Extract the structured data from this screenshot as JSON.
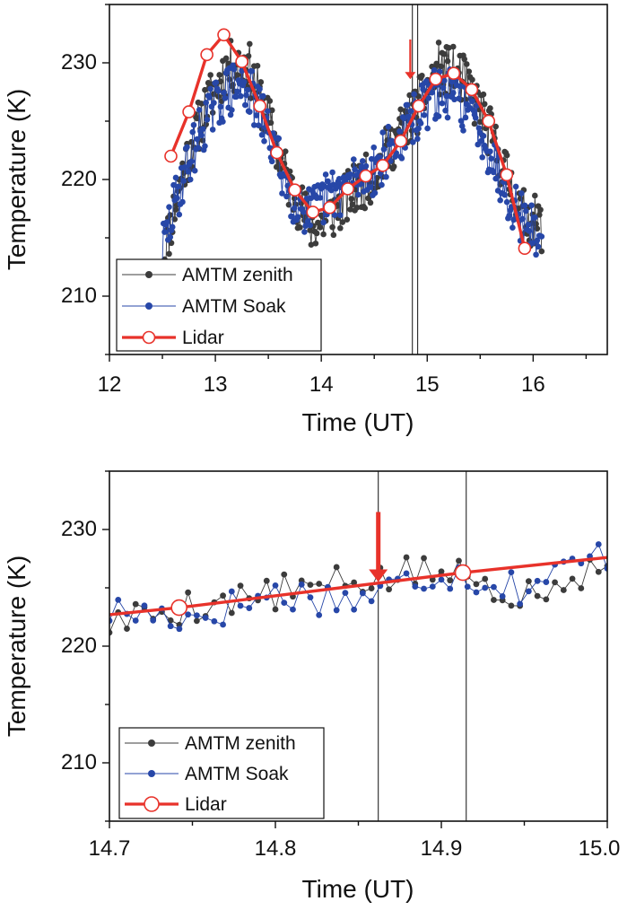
{
  "colors": {
    "zenith": "#3c3c3c",
    "soak": "#2747a8",
    "lidar": "#e8322a",
    "axis": "#111111",
    "marker_line": "#111111"
  },
  "chart_data": [
    {
      "id": "top",
      "type": "line",
      "xlabel": "Time (UT)",
      "ylabel": "Temperature (K)",
      "xlim": [
        12,
        16.7
      ],
      "ylim": [
        205,
        235
      ],
      "xticks": [
        12,
        13,
        14,
        15,
        16
      ],
      "yticks": [
        210,
        220,
        230
      ],
      "xtick_labels": [
        "12",
        "13",
        "14",
        "15",
        "16"
      ],
      "ytick_labels": [
        "210",
        "220",
        "230"
      ],
      "legend_placement": "bottom-left",
      "vertical_lines": [
        14.86,
        14.91
      ],
      "arrow": {
        "x": 14.84,
        "y_top": 232,
        "y_tip": 228.6
      },
      "legend": [
        "AMTM zenith",
        "AMTM Soak",
        "Lidar"
      ],
      "series": [
        {
          "name": "AMTM zenith",
          "kind": "generated",
          "x_range": [
            12.5,
            16.08
          ],
          "n": 340,
          "anchors_x": [
            12.5,
            12.7,
            12.9,
            13.1,
            13.3,
            13.5,
            13.7,
            13.9,
            14.05,
            14.25,
            14.5,
            14.7,
            14.9,
            15.1,
            15.3,
            15.5,
            15.7,
            15.9,
            16.08
          ],
          "anchors_y": [
            213,
            221,
            226,
            229.5,
            230,
            225,
            219.5,
            216,
            216.5,
            218.5,
            220.5,
            223.5,
            226,
            229.5,
            229,
            226,
            221.5,
            217,
            216
          ],
          "noise": 2.3,
          "seed": 11
        },
        {
          "name": "AMTM Soak",
          "kind": "generated",
          "x_range": [
            12.5,
            16.08
          ],
          "n": 340,
          "anchors_x": [
            12.5,
            12.7,
            12.9,
            13.1,
            13.3,
            13.5,
            13.7,
            13.9,
            14.05,
            14.25,
            14.5,
            14.7,
            14.9,
            15.1,
            15.3,
            15.5,
            15.7,
            15.9,
            16.08
          ],
          "anchors_y": [
            214,
            220.5,
            225,
            227.5,
            228,
            224,
            219,
            217,
            218.5,
            219.5,
            221,
            223,
            225.5,
            227.5,
            227,
            224.5,
            220,
            216.5,
            215
          ],
          "noise": 2.3,
          "seed": 29
        },
        {
          "name": "Lidar",
          "kind": "points",
          "x": [
            12.58,
            12.75,
            12.92,
            13.08,
            13.25,
            13.42,
            13.58,
            13.75,
            13.92,
            14.08,
            14.25,
            14.42,
            14.58,
            14.75,
            14.92,
            15.08,
            15.25,
            15.42,
            15.58,
            15.75,
            15.92
          ],
          "y": [
            222,
            225.8,
            230.7,
            232.4,
            230.1,
            226.3,
            222.3,
            219.1,
            217.2,
            217.6,
            219.2,
            220.3,
            221.2,
            223.3,
            226.3,
            228.6,
            229.1,
            227.7,
            225,
            220.4,
            214.1
          ]
        }
      ]
    },
    {
      "id": "bottom",
      "type": "line",
      "xlabel": "Time (UT)",
      "ylabel": "Temperature (K)",
      "xlim": [
        14.7,
        15.0
      ],
      "ylim": [
        205,
        235
      ],
      "xticks": [
        14.7,
        14.8,
        14.9,
        15.0
      ],
      "yticks": [
        210,
        220,
        230
      ],
      "xtick_labels": [
        "14.7",
        "14.8",
        "14.9",
        "15.0"
      ],
      "ytick_labels": [
        "210",
        "220",
        "230"
      ],
      "legend_placement": "bottom-left",
      "vertical_lines": [
        14.862,
        14.915
      ],
      "arrow": {
        "x": 14.862,
        "y_top": 231.5,
        "y_tip": 225.5
      },
      "legend": [
        "AMTM zenith",
        "AMTM Soak",
        "Lidar"
      ],
      "series": [
        {
          "name": "AMTM zenith",
          "kind": "generated",
          "x_range": [
            14.7,
            15.0
          ],
          "n": 58,
          "anchors_x": [
            14.7,
            14.75,
            14.8,
            14.85,
            14.9,
            14.95,
            15.0
          ],
          "anchors_y": [
            222,
            223.5,
            224.5,
            225.5,
            226.5,
            224.5,
            227.5
          ],
          "noise": 1.6,
          "seed": 5
        },
        {
          "name": "AMTM Soak",
          "kind": "generated",
          "x_range": [
            14.7,
            15.0
          ],
          "n": 58,
          "anchors_x": [
            14.7,
            14.75,
            14.8,
            14.85,
            14.9,
            14.95,
            15.0
          ],
          "anchors_y": [
            223,
            222.5,
            224.5,
            224,
            226.5,
            225,
            228
          ],
          "noise": 1.6,
          "seed": 17
        },
        {
          "name": "Lidar",
          "kind": "points",
          "x": [
            14.7,
            14.742,
            14.913,
            15.0
          ],
          "y": [
            222.7,
            223.3,
            226.3,
            227.6
          ],
          "markers": [
            false,
            true,
            true,
            false
          ]
        }
      ]
    }
  ]
}
